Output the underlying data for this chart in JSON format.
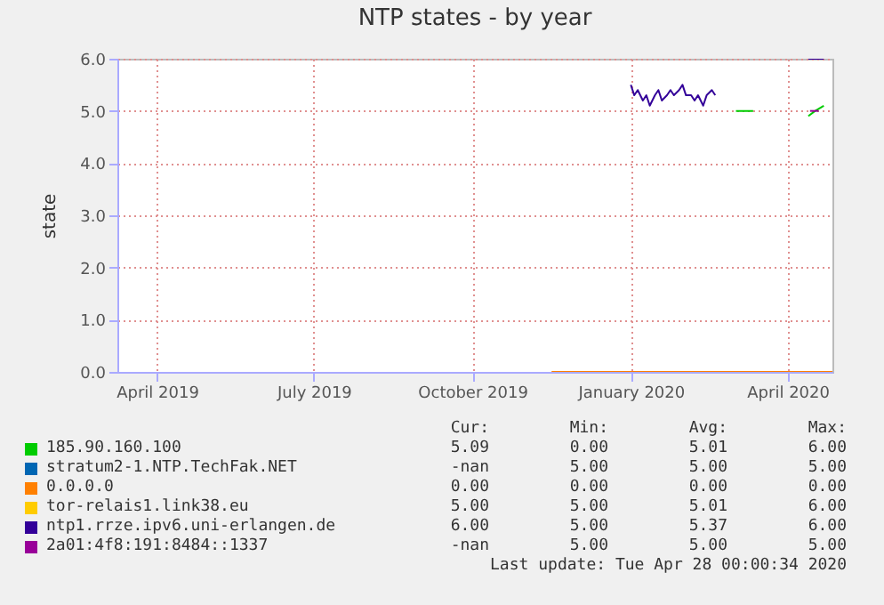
{
  "chart_data": {
    "type": "line",
    "title": "NTP states - by year",
    "ylabel": "state",
    "xlim": [
      "2019-03-09",
      "2020-04-27"
    ],
    "xticks": [
      {
        "value": "2019-04-01",
        "label": "April 2019"
      },
      {
        "value": "2019-07-01",
        "label": "July 2019"
      },
      {
        "value": "2019-10-01",
        "label": "October 2019"
      },
      {
        "value": "2020-01-01",
        "label": "January 2020"
      },
      {
        "value": "2020-04-01",
        "label": "April 2020"
      }
    ],
    "ylim": [
      0,
      6
    ],
    "yticks": [
      {
        "value": 0,
        "label": "0.0"
      },
      {
        "value": 1,
        "label": "1.0"
      },
      {
        "value": 2,
        "label": "2.0"
      },
      {
        "value": 3,
        "label": "3.0"
      },
      {
        "value": 4,
        "label": "4.0"
      },
      {
        "value": 5,
        "label": "5.0"
      },
      {
        "value": 6,
        "label": "6.0"
      }
    ],
    "grid": true,
    "legend": "bottom",
    "marker": "none",
    "line_style": "solid",
    "series": [
      {
        "name": "185.90.160.100",
        "color": "#00cc00",
        "x": [
          "2020-03-02",
          "2020-03-07",
          "2020-03-12",
          "2020-03-20",
          "2020-04-13",
          "2020-04-17",
          "2020-04-22"
        ],
        "values": [
          5.0,
          5.0,
          5.0,
          null,
          4.9,
          5.0,
          5.1
        ]
      },
      {
        "name": "stratum2-1.NTP.TechFak.NET",
        "color": "#0066b3"
      },
      {
        "name": "0.0.0.0",
        "color": "#ff8000",
        "x": [
          "2019-11-16",
          "2020-04-27"
        ],
        "values": [
          0,
          0
        ]
      },
      {
        "name": "tor-relais1.link38.eu",
        "color": "#ffcc00"
      },
      {
        "name": "ntp1.rrze.ipv6.uni-erlangen.de",
        "color": "#330099",
        "x": [
          "2020-01-01",
          "2020-01-03",
          "2020-01-05",
          "2020-01-08",
          "2020-01-10",
          "2020-01-12",
          "2020-01-15",
          "2020-01-17",
          "2020-01-19",
          "2020-01-22",
          "2020-01-24",
          "2020-01-26",
          "2020-01-29",
          "2020-01-31",
          "2020-02-02",
          "2020-02-05",
          "2020-02-07",
          "2020-02-09",
          "2020-02-12",
          "2020-02-14",
          "2020-02-17",
          "2020-02-19",
          "2020-03-01",
          "2020-04-13",
          "2020-04-22"
        ],
        "values": [
          5.5,
          5.3,
          5.4,
          5.2,
          5.3,
          5.1,
          5.3,
          5.4,
          5.2,
          5.3,
          5.4,
          5.3,
          5.4,
          5.5,
          5.3,
          5.3,
          5.2,
          5.3,
          5.1,
          5.3,
          5.4,
          5.3,
          null,
          6.0,
          6.0
        ]
      },
      {
        "name": "2a01:4f8:191:8484::1337",
        "color": "#990099",
        "x": [
          "2020-04-14",
          "2020-04-19"
        ],
        "values": [
          5.0,
          5.0
        ]
      }
    ],
    "annotations": [
      "Cur:",
      "Min:",
      "Avg:",
      "Max:",
      "5.09",
      "0.00",
      "5.01",
      "6.00",
      "-nan",
      "5.00",
      "5.00",
      "5.00",
      "0.00",
      "0.00",
      "0.00",
      "0.00",
      "5.00",
      "5.00",
      "5.01",
      "6.00",
      "6.00",
      "5.00",
      "5.37",
      "6.00",
      "-nan",
      "5.00",
      "5.00",
      "5.00",
      "Last update: Tue Apr 28 00:00:34 2020"
    ]
  }
}
